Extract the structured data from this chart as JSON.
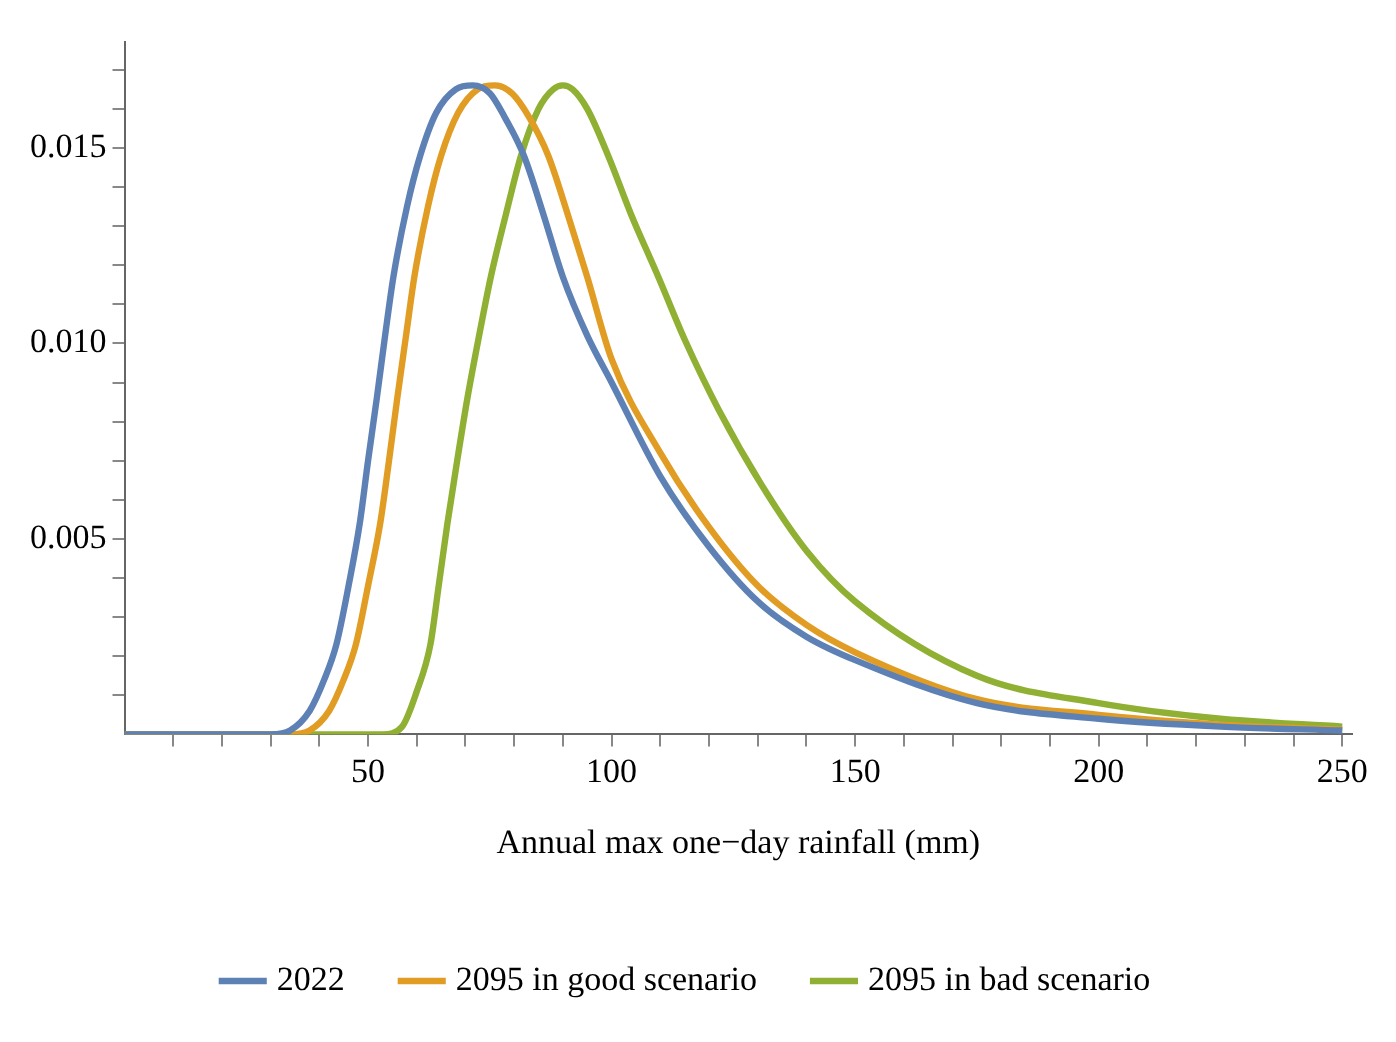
{
  "chart_data": {
    "type": "line",
    "xlabel": "Annual max one−day rainfall (mm)",
    "xlim": [
      0,
      252
    ],
    "ylim": [
      0,
      0.0177
    ],
    "xticks": [
      {
        "value": 10,
        "label": null
      },
      {
        "value": 20,
        "label": null
      },
      {
        "value": 30,
        "label": null
      },
      {
        "value": 40,
        "label": null
      },
      50,
      {
        "value": 60,
        "label": null
      },
      {
        "value": 70,
        "label": null
      },
      {
        "value": 80,
        "label": null
      },
      {
        "value": 90,
        "label": null
      },
      100,
      {
        "value": 110,
        "label": null
      },
      {
        "value": 120,
        "label": null
      },
      {
        "value": 130,
        "label": null
      },
      {
        "value": 140,
        "label": null
      },
      150,
      {
        "value": 160,
        "label": null
      },
      {
        "value": 170,
        "label": null
      },
      {
        "value": 180,
        "label": null
      },
      {
        "value": 190,
        "label": null
      },
      200,
      {
        "value": 210,
        "label": null
      },
      {
        "value": 220,
        "label": null
      },
      {
        "value": 230,
        "label": null
      },
      {
        "value": 240,
        "label": null
      },
      250
    ],
    "yticks": [
      {
        "value": 0.001,
        "label": null
      },
      {
        "value": 0.002,
        "label": null
      },
      {
        "value": 0.003,
        "label": null
      },
      {
        "value": 0.004,
        "label": null
      },
      0.005,
      {
        "value": 0.006,
        "label": null
      },
      {
        "value": 0.007,
        "label": null
      },
      {
        "value": 0.008,
        "label": null
      },
      {
        "value": 0.009,
        "label": null
      },
      {
        "value": 0.01,
        "label": "0.010"
      },
      {
        "value": 0.011,
        "label": null
      },
      {
        "value": 0.012,
        "label": null
      },
      {
        "value": 0.013,
        "label": null
      },
      {
        "value": 0.014,
        "label": null
      },
      0.015,
      {
        "value": 0.016,
        "label": null
      },
      {
        "value": 0.017,
        "label": null
      }
    ],
    "grid": false,
    "legend": "bottom",
    "marker": "none",
    "line_style": "solid",
    "series": [
      {
        "name": "2022",
        "color": "#5e81b5",
        "x": [
          0,
          30,
          34,
          38,
          41,
          43.5,
          46,
          48.3,
          50,
          51.8,
          53.5,
          55.2,
          58,
          60.7,
          64,
          68,
          71.5,
          75,
          78,
          82,
          86,
          90,
          95,
          100,
          110,
          120,
          130,
          140,
          150,
          175,
          200,
          225,
          250
        ],
        "values": [
          0,
          0,
          0.0001,
          0.0006,
          0.0014,
          0.0023,
          0.0038,
          0.0054,
          0.007,
          0.0086,
          0.0102,
          0.0117,
          0.0135,
          0.0148,
          0.0159,
          0.0165,
          0.0166,
          0.0164,
          0.0158,
          0.0148,
          0.0133,
          0.0117,
          0.0102,
          0.009,
          0.0066,
          0.0048,
          0.0034,
          0.0025,
          0.0019,
          0.0008,
          0.0004,
          0.0002,
          0.0001
        ]
      },
      {
        "name": "2095 in good scenario",
        "color": "#e19c24",
        "x": [
          0,
          34,
          38,
          42,
          45,
          47.5,
          50,
          52.5,
          54.3,
          56,
          57.8,
          59.5,
          62.3,
          65,
          68.5,
          72.5,
          76,
          79.5,
          83,
          87,
          91,
          95,
          100,
          110,
          120,
          130,
          140,
          150,
          175,
          200,
          225,
          250
        ],
        "values": [
          0,
          0,
          0.0001,
          0.0006,
          0.0014,
          0.0023,
          0.0038,
          0.0054,
          0.007,
          0.0086,
          0.0102,
          0.0117,
          0.0135,
          0.0148,
          0.0159,
          0.0165,
          0.0166,
          0.0164,
          0.0158,
          0.0148,
          0.0133,
          0.0117,
          0.0096,
          0.0072,
          0.0053,
          0.0038,
          0.0028,
          0.0021,
          0.0009,
          0.0005,
          0.00025,
          0.00012
        ]
      },
      {
        "name": "2095 in bad scenario",
        "color": "#8fb032",
        "x": [
          0,
          50,
          53,
          57,
          60,
          62.8,
          64.5,
          66.3,
          68.3,
          70.4,
          72.8,
          75.2,
          78.3,
          81.4,
          85,
          88,
          90,
          92,
          95,
          99.3,
          104,
          109.6,
          115,
          122,
          131.7,
          140,
          150,
          175,
          200,
          225,
          250
        ],
        "values": [
          0,
          0,
          0,
          0.0002,
          0.0011,
          0.0023,
          0.0038,
          0.0054,
          0.007,
          0.0086,
          0.0102,
          0.0117,
          0.0133,
          0.0148,
          0.016,
          0.0165,
          0.0166,
          0.0165,
          0.016,
          0.0148,
          0.0133,
          0.0117,
          0.0101,
          0.0083,
          0.0062,
          0.0047,
          0.0034,
          0.0015,
          0.0008,
          0.0004,
          0.0002
        ]
      }
    ]
  }
}
